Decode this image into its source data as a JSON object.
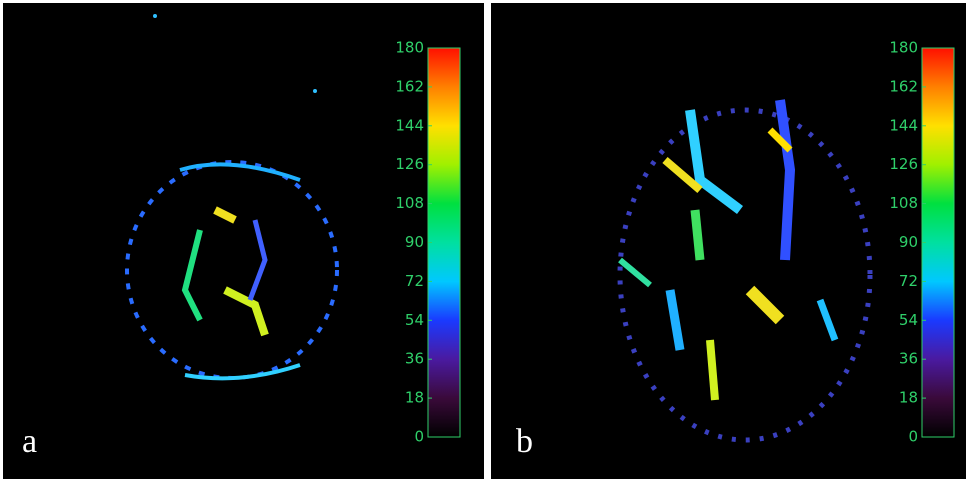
{
  "panels": [
    {
      "label": "a",
      "colorbar": {
        "ticks": [
          0,
          18,
          36,
          54,
          72,
          90,
          108,
          126,
          144,
          162,
          180
        ]
      }
    },
    {
      "label": "b",
      "colorbar": {
        "ticks": [
          0,
          18,
          36,
          54,
          72,
          90,
          108,
          126,
          144,
          162,
          180
        ]
      }
    }
  ]
}
